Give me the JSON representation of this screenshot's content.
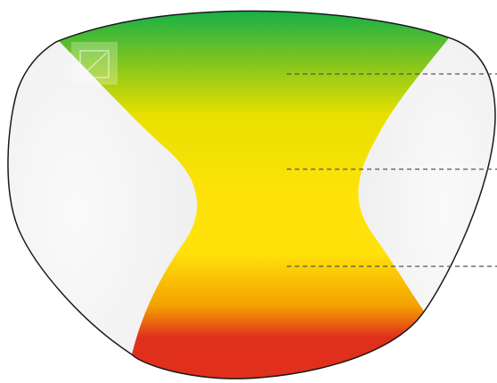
{
  "colors": {
    "background": "#ffffff",
    "lens_outline": "#1a1a1a",
    "side_zone": "#eeeeee",
    "side_zone_highlight": "#fafafa",
    "band_top": "#00ab50",
    "band_upper": "#7fc520",
    "band_mid_upper": "#e8e000",
    "band_mid": "#ffe20a",
    "band_lower": "#f3a000",
    "band_bottom": "#e0301c",
    "leader_line": "#555555"
  },
  "icons": {
    "corner_badge": "expand-corner-icon"
  },
  "leader_lines": [
    "far-zone",
    "intermediate-zone",
    "near-zone"
  ]
}
